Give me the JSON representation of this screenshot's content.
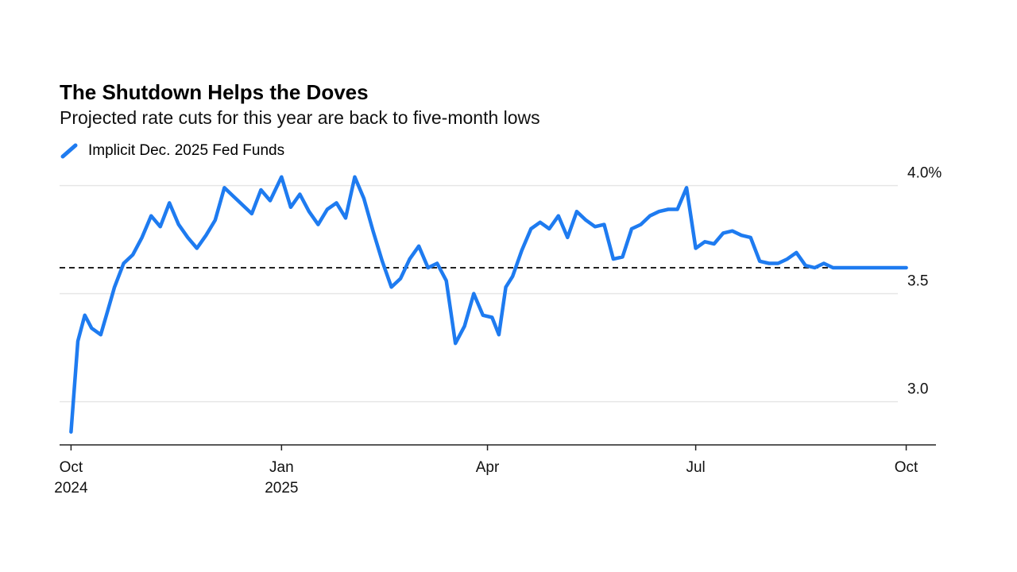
{
  "chart_data": {
    "type": "line",
    "title": "The Shutdown Helps the Doves",
    "subtitle": "Projected rate cuts for this year are back to five-month lows",
    "series": [
      {
        "name": "Implicit Dec. 2025 Fed Funds",
        "color": "#1e7bf0",
        "x": [
          "2024-10-01",
          "2024-10-04",
          "2024-10-07",
          "2024-10-10",
          "2024-10-14",
          "2024-10-17",
          "2024-10-20",
          "2024-10-24",
          "2024-10-28",
          "2024-11-01",
          "2024-11-05",
          "2024-11-09",
          "2024-11-13",
          "2024-11-17",
          "2024-11-21",
          "2024-11-25",
          "2024-11-29",
          "2024-12-03",
          "2024-12-07",
          "2024-12-11",
          "2024-12-15",
          "2024-12-19",
          "2024-12-23",
          "2024-12-27",
          "2025-01-01",
          "2025-01-05",
          "2025-01-09",
          "2025-01-13",
          "2025-01-17",
          "2025-01-21",
          "2025-01-25",
          "2025-01-29",
          "2025-02-02",
          "2025-02-06",
          "2025-02-10",
          "2025-02-14",
          "2025-02-18",
          "2025-02-22",
          "2025-02-26",
          "2025-03-02",
          "2025-03-06",
          "2025-03-10",
          "2025-03-14",
          "2025-03-18",
          "2025-03-22",
          "2025-03-26",
          "2025-03-30",
          "2025-04-03",
          "2025-04-06",
          "2025-04-09",
          "2025-04-12",
          "2025-04-16",
          "2025-04-20",
          "2025-04-24",
          "2025-04-28",
          "2025-05-02",
          "2025-05-06",
          "2025-05-10",
          "2025-05-14",
          "2025-05-18",
          "2025-05-22",
          "2025-05-26",
          "2025-05-30",
          "2025-06-03",
          "2025-06-07",
          "2025-06-11",
          "2025-06-15",
          "2025-06-19",
          "2025-06-23",
          "2025-06-27",
          "2025-07-01",
          "2025-07-05",
          "2025-07-09",
          "2025-07-13",
          "2025-07-17",
          "2025-07-21",
          "2025-07-25",
          "2025-07-29",
          "2025-08-02",
          "2025-08-06",
          "2025-08-10",
          "2025-08-14",
          "2025-08-18",
          "2025-08-22",
          "2025-08-26",
          "2025-08-30",
          "2025-09-03",
          "2025-09-07",
          "2025-09-11",
          "2025-09-15",
          "2025-09-19",
          "2025-09-23",
          "2025-09-27",
          "2025-10-01"
        ],
        "y": [
          2.86,
          3.28,
          3.4,
          3.34,
          3.31,
          3.42,
          3.53,
          3.64,
          3.68,
          3.76,
          3.86,
          3.81,
          3.92,
          3.82,
          3.76,
          3.71,
          3.77,
          3.84,
          3.99,
          3.95,
          3.91,
          3.87,
          3.98,
          3.93,
          4.04,
          3.9,
          3.96,
          3.88,
          3.82,
          3.89,
          3.92,
          3.85,
          4.04,
          3.94,
          3.79,
          3.65,
          3.53,
          3.57,
          3.66,
          3.72,
          3.62,
          3.64,
          3.56,
          3.27,
          3.35,
          3.5,
          3.4,
          3.39,
          3.31,
          3.53,
          3.58,
          3.7,
          3.8,
          3.83,
          3.8,
          3.86,
          3.76,
          3.88,
          3.84,
          3.81,
          3.82,
          3.66,
          3.67,
          3.8,
          3.82,
          3.86,
          3.88,
          3.89,
          3.89,
          3.99,
          3.71,
          3.74,
          3.73,
          3.78,
          3.79,
          3.77,
          3.76,
          3.65,
          3.64,
          3.64,
          3.66,
          3.69,
          3.63,
          3.62,
          3.64,
          3.62,
          3.62,
          3.62,
          3.62,
          3.62,
          3.62,
          3.62,
          3.62,
          3.62
        ]
      }
    ],
    "reference_line": {
      "y": 3.62,
      "style": "dashed"
    },
    "x_ticks": [
      {
        "value": "2024-10-01",
        "line1": "Oct",
        "line2": "2024"
      },
      {
        "value": "2025-01-01",
        "line1": "Jan",
        "line2": "2025"
      },
      {
        "value": "2025-04-01",
        "line1": "Apr",
        "line2": ""
      },
      {
        "value": "2025-07-01",
        "line1": "Jul",
        "line2": ""
      },
      {
        "value": "2025-10-01",
        "line1": "Oct",
        "line2": ""
      }
    ],
    "y_ticks": [
      {
        "value": 4.0,
        "label": "4.0%"
      },
      {
        "value": 3.5,
        "label": "3.5"
      },
      {
        "value": 3.0,
        "label": "3.0"
      }
    ],
    "ylim": [
      2.8,
      4.05
    ],
    "xlim": [
      "2024-09-26",
      "2025-10-14"
    ],
    "grid": true,
    "legend_position": "top-left"
  }
}
